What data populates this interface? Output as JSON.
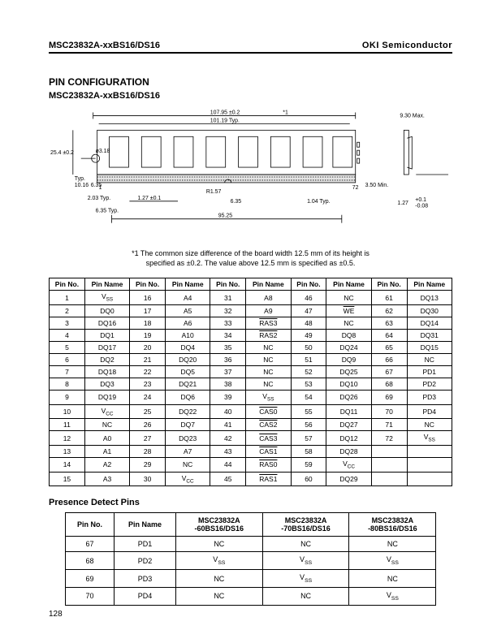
{
  "header": {
    "left": "MSC23832A-xxBS16/DS16",
    "right_bold": "OKI",
    "right_rest": " Semiconductor"
  },
  "section": {
    "title": "PIN CONFIGURATION",
    "subtitle": "MSC23832A-xxBS16/DS16"
  },
  "diagram": {
    "dims": {
      "width_max": "107.95 ±0.2",
      "width_typ": "101.19 Typ.",
      "star": "*1",
      "right_h": "9.30 Max.",
      "left_h": "25.4 ±0.2",
      "hole": "ø3.18",
      "left_typ": "Typ.\n10.16",
      "left_635": "6.35",
      "bottom_203": "2.03 Typ.",
      "bottom_635l": "6.35 Typ.",
      "pitch": "1.27 ±0.1",
      "r": "R1.57",
      "mid_635": "6.35",
      "right_104": "1.04 Typ.",
      "span": "95.25",
      "pin1": "1",
      "pin72": "72",
      "min": "3.50 Min.",
      "tol": "1.27 +0.1\n       -0.08"
    }
  },
  "footnote": {
    "line1": "*1 The common size difference of the board width 12.5 mm of its height is",
    "line2": "specified as ±0.2.  The value above 12.5 mm is specified as ±0.5."
  },
  "pin_table": {
    "headers": [
      "Pin No.",
      "Pin Name",
      "Pin No.",
      "Pin Name",
      "Pin No.",
      "Pin Name",
      "Pin No.",
      "Pin Name",
      "Pin No.",
      "Pin Name"
    ],
    "rows": [
      [
        "1",
        "V<sub>SS</sub>",
        "16",
        "A4",
        "31",
        "A8",
        "46",
        "NC",
        "61",
        "DQ13"
      ],
      [
        "2",
        "DQ0",
        "17",
        "A5",
        "32",
        "A9",
        "47",
        "<span class='ov'>WE</span>",
        "62",
        "DQ30"
      ],
      [
        "3",
        "DQ16",
        "18",
        "A6",
        "33",
        "<span class='ov'>RAS3</span>",
        "48",
        "NC",
        "63",
        "DQ14"
      ],
      [
        "4",
        "DQ1",
        "19",
        "A10",
        "34",
        "<span class='ov'>RAS2</span>",
        "49",
        "DQ8",
        "64",
        "DQ31"
      ],
      [
        "5",
        "DQ17",
        "20",
        "DQ4",
        "35",
        "NC",
        "50",
        "DQ24",
        "65",
        "DQ15"
      ],
      [
        "6",
        "DQ2",
        "21",
        "DQ20",
        "36",
        "NC",
        "51",
        "DQ9",
        "66",
        "NC"
      ],
      [
        "7",
        "DQ18",
        "22",
        "DQ5",
        "37",
        "NC",
        "52",
        "DQ25",
        "67",
        "PD1"
      ],
      [
        "8",
        "DQ3",
        "23",
        "DQ21",
        "38",
        "NC",
        "53",
        "DQ10",
        "68",
        "PD2"
      ],
      [
        "9",
        "DQ19",
        "24",
        "DQ6",
        "39",
        "V<sub>SS</sub>",
        "54",
        "DQ26",
        "69",
        "PD3"
      ],
      [
        "10",
        "V<sub>CC</sub>",
        "25",
        "DQ22",
        "40",
        "<span class='ov'>CAS0</span>",
        "55",
        "DQ11",
        "70",
        "PD4"
      ],
      [
        "11",
        "NC",
        "26",
        "DQ7",
        "41",
        "<span class='ov'>CAS2</span>",
        "56",
        "DQ27",
        "71",
        "NC"
      ],
      [
        "12",
        "A0",
        "27",
        "DQ23",
        "42",
        "<span class='ov'>CAS3</span>",
        "57",
        "DQ12",
        "72",
        "V<sub>SS</sub>"
      ],
      [
        "13",
        "A1",
        "28",
        "A7",
        "43",
        "<span class='ov'>CAS1</span>",
        "58",
        "DQ28",
        "",
        ""
      ],
      [
        "14",
        "A2",
        "29",
        "NC",
        "44",
        "<span class='ov'>RAS0</span>",
        "59",
        "V<sub>CC</sub>",
        "",
        ""
      ],
      [
        "15",
        "A3",
        "30",
        "V<sub>CC</sub>",
        "45",
        "<span class='ov'>RAS1</span>",
        "60",
        "DQ29",
        "",
        ""
      ]
    ]
  },
  "pd": {
    "heading": "Presence Detect Pins",
    "headers": [
      "Pin No.",
      "Pin Name",
      "MSC23832A\n-60BS16/DS16",
      "MSC23832A\n-70BS16/DS16",
      "MSC23832A\n-80BS16/DS16"
    ],
    "rows": [
      [
        "67",
        "PD1",
        "NC",
        "NC",
        "NC"
      ],
      [
        "68",
        "PD2",
        "V<sub>SS</sub>",
        "V<sub>SS</sub>",
        "V<sub>SS</sub>"
      ],
      [
        "69",
        "PD3",
        "NC",
        "V<sub>SS</sub>",
        "NC"
      ],
      [
        "70",
        "PD4",
        "NC",
        "NC",
        "V<sub>SS</sub>"
      ]
    ]
  },
  "page_number": "128"
}
